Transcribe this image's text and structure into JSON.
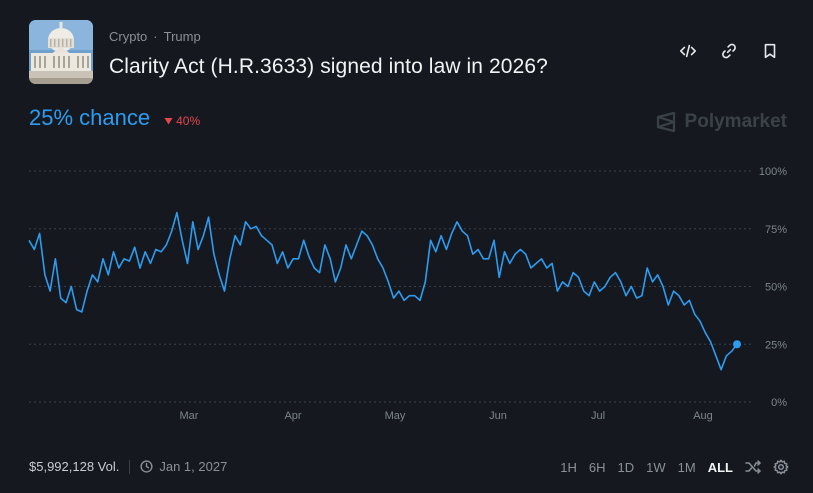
{
  "breadcrumb": {
    "category": "Crypto",
    "separator": "·",
    "tag": "Trump"
  },
  "market": {
    "title": "Clarity Act (H.R.3633) signed into law in 2026?",
    "chance": "25% chance",
    "change": "40%",
    "change_direction": "down"
  },
  "brand": "Polymarket",
  "footer": {
    "volume": "$5,992,128 Vol.",
    "end_date": "Jan 1, 2027"
  },
  "ranges": [
    "1H",
    "6H",
    "1D",
    "1W",
    "1M",
    "ALL"
  ],
  "active_range": "ALL",
  "colors": {
    "accent": "#2d9cf0",
    "down": "#e0484e",
    "background": "#15191f"
  },
  "icons": [
    "embed-icon",
    "link-icon",
    "bookmark-icon",
    "shuffle-icon",
    "settings-icon",
    "clock-icon",
    "polymarket-logo-icon"
  ],
  "chart_data": {
    "type": "line",
    "x_ticks": [
      "Mar",
      "Apr",
      "May",
      "Jun",
      "Jul",
      "Aug"
    ],
    "y_ticks": [
      "100%",
      "75%",
      "50%",
      "25%",
      "0%"
    ],
    "ylim": [
      0,
      100
    ],
    "grid": true,
    "series": [
      {
        "values": [
          70,
          66,
          73,
          55,
          48,
          62,
          45,
          43,
          50,
          40,
          39,
          48,
          55,
          52,
          62,
          55,
          65,
          58,
          62,
          61,
          67,
          58,
          65,
          60,
          66,
          65,
          68,
          74,
          82,
          70,
          60,
          78,
          66,
          72,
          80,
          64,
          55,
          48,
          62,
          72,
          68,
          78,
          75,
          76,
          72,
          70,
          68,
          60,
          65,
          58,
          62,
          62,
          70,
          63,
          58,
          56,
          68,
          62,
          52,
          58,
          68,
          62,
          68,
          74,
          72,
          68,
          62,
          58,
          52,
          45,
          48,
          44,
          46,
          46,
          44,
          52,
          70,
          65,
          72,
          66,
          73,
          78,
          74,
          72,
          64,
          66,
          62,
          62,
          70,
          54,
          65,
          60,
          64,
          66,
          64,
          58,
          60,
          62,
          58,
          60,
          48,
          52,
          50,
          56,
          54,
          48,
          46,
          52,
          48,
          50,
          54,
          56,
          52,
          46,
          50,
          45,
          46,
          58,
          52,
          55,
          50,
          42,
          48,
          46,
          42,
          44,
          38,
          35,
          30,
          26,
          20,
          14,
          20,
          22,
          25
        ],
        "last_value": 25
      }
    ]
  }
}
